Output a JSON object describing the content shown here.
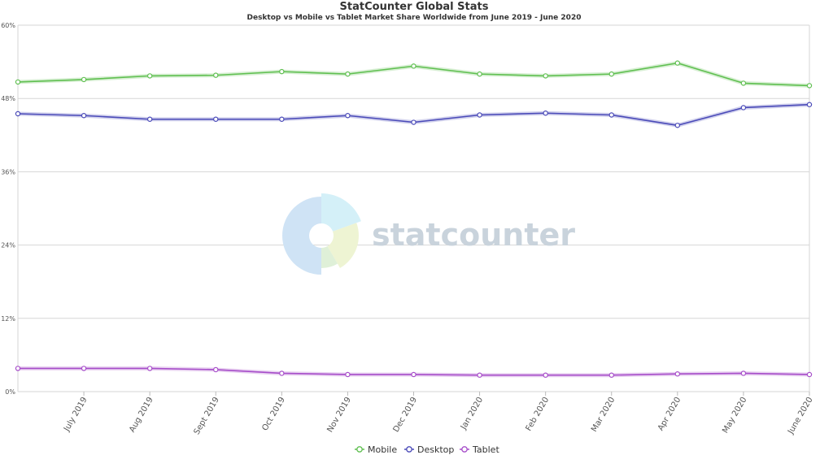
{
  "chart_data": {
    "type": "line",
    "title": "StatCounter Global Stats",
    "subtitle": "Desktop vs Mobile vs Tablet Market Share Worldwide from June 2019 - June 2020",
    "categories": [
      "June 2019",
      "July 2019",
      "Aug 2019",
      "Sept 2019",
      "Oct 2019",
      "Nov 2019",
      "Dec 2019",
      "Jan 2020",
      "Feb 2020",
      "Mar 2020",
      "Apr 2020",
      "May 2020",
      "June 2020"
    ],
    "x_tick_labels": [
      "July 2019",
      "Aug 2019",
      "Sept 2019",
      "Oct 2019",
      "Nov 2019",
      "Dec 2019",
      "Jan 2020",
      "Feb 2020",
      "Mar 2020",
      "Apr 2020",
      "May 2020",
      "June 2020"
    ],
    "ylim": [
      0,
      60
    ],
    "y_ticks": [
      0,
      12,
      24,
      36,
      48,
      60
    ],
    "y_tick_labels": [
      "0%",
      "12%",
      "24%",
      "36%",
      "48%",
      "60%"
    ],
    "grid": true,
    "legend_position": "bottom-center",
    "series": [
      {
        "name": "Mobile",
        "color": "#5fbf50",
        "values": [
          50.7,
          51.1,
          51.7,
          51.8,
          52.4,
          52.0,
          53.3,
          52.0,
          51.7,
          52.0,
          53.8,
          50.5,
          50.1
        ]
      },
      {
        "name": "Desktop",
        "color": "#4a4ab8",
        "values": [
          45.5,
          45.2,
          44.6,
          44.6,
          44.6,
          45.2,
          44.1,
          45.3,
          45.6,
          45.3,
          43.6,
          46.5,
          47.0
        ]
      },
      {
        "name": "Tablet",
        "color": "#a64dc9",
        "values": [
          3.8,
          3.8,
          3.8,
          3.6,
          3.0,
          2.8,
          2.8,
          2.7,
          2.7,
          2.7,
          2.9,
          3.0,
          2.8
        ]
      }
    ],
    "watermark": "statcounter"
  }
}
